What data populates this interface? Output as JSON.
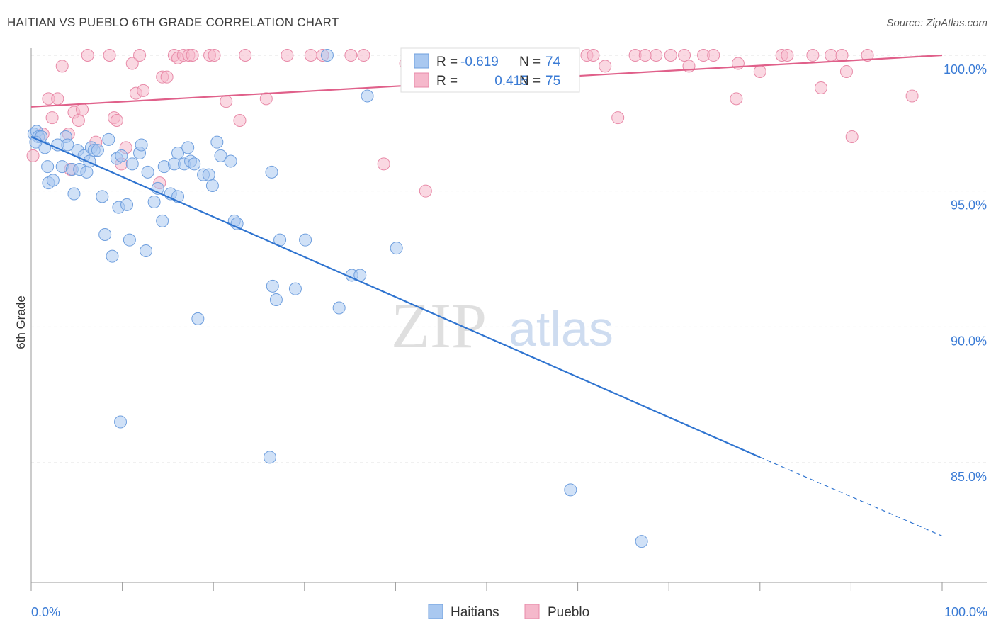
{
  "chart_data": {
    "type": "scatter",
    "title": "HAITIAN VS PUEBLO 6TH GRADE CORRELATION CHART",
    "source": "Source: ZipAtlas.com",
    "xlabel": "",
    "ylabel": "6th Grade",
    "xlim": [
      0,
      100
    ],
    "ylim": [
      80.5,
      100.8
    ],
    "x_tick_labels": [
      "0.0%",
      "100.0%"
    ],
    "y_ticks": [
      85,
      90,
      95,
      100
    ],
    "y_tick_labels": [
      "85.0%",
      "90.0%",
      "95.0%",
      "100.0%"
    ],
    "grid": true,
    "watermark": {
      "part1": "ZIP",
      "part2": "atlas"
    },
    "legend_top": [
      {
        "label_r": "R =",
        "r": "-0.619",
        "label_n": "N =",
        "n": "74",
        "color": "#3a7bd5"
      },
      {
        "label_r": "R =",
        "r": " 0.415",
        "label_n": "N =",
        "n": "75",
        "color": "#e0608a"
      }
    ],
    "legend_bottom": [
      {
        "name": "Haitians",
        "color": "#a9c8f0"
      },
      {
        "name": "Pueblo",
        "color": "#f5b8cb"
      }
    ],
    "series": [
      {
        "name": "Haitians",
        "fill": "#a9c8f0",
        "stroke": "#6f9fde",
        "line_color": "#2f74d0",
        "trend": {
          "x0": 0,
          "y0": 97.0,
          "x1": 80,
          "y1": 85.2,
          "x_dash_end": 100,
          "y_dash_end": 82.3
        },
        "points": [
          [
            0.3,
            97.1
          ],
          [
            0.6,
            97.2
          ],
          [
            0.8,
            97.0
          ],
          [
            1.1,
            97.0
          ],
          [
            1.5,
            96.6
          ],
          [
            1.8,
            95.9
          ],
          [
            1.9,
            95.3
          ],
          [
            2.4,
            95.4
          ],
          [
            2.9,
            96.7
          ],
          [
            3.4,
            95.9
          ],
          [
            3.8,
            97.0
          ],
          [
            4.0,
            96.7
          ],
          [
            4.5,
            95.8
          ],
          [
            4.7,
            94.9
          ],
          [
            5.1,
            96.5
          ],
          [
            5.3,
            95.8
          ],
          [
            5.8,
            96.3
          ],
          [
            6.1,
            95.7
          ],
          [
            6.4,
            96.1
          ],
          [
            6.6,
            96.6
          ],
          [
            6.9,
            96.5
          ],
          [
            7.3,
            96.5
          ],
          [
            7.8,
            94.8
          ],
          [
            8.1,
            93.4
          ],
          [
            8.5,
            96.9
          ],
          [
            8.9,
            92.6
          ],
          [
            9.4,
            96.2
          ],
          [
            9.6,
            94.4
          ],
          [
            9.9,
            96.3
          ],
          [
            10.5,
            94.5
          ],
          [
            10.8,
            93.2
          ],
          [
            11.1,
            96.0
          ],
          [
            11.9,
            96.4
          ],
          [
            12.1,
            96.7
          ],
          [
            12.6,
            92.8
          ],
          [
            12.8,
            95.7
          ],
          [
            13.5,
            94.6
          ],
          [
            13.9,
            95.1
          ],
          [
            14.4,
            93.9
          ],
          [
            14.6,
            95.9
          ],
          [
            15.3,
            94.9
          ],
          [
            15.7,
            96.0
          ],
          [
            16.1,
            94.8
          ],
          [
            16.1,
            96.4
          ],
          [
            16.8,
            96.0
          ],
          [
            17.2,
            96.6
          ],
          [
            17.5,
            96.1
          ],
          [
            17.9,
            96.0
          ],
          [
            18.3,
            90.3
          ],
          [
            18.9,
            95.6
          ],
          [
            19.5,
            95.6
          ],
          [
            19.9,
            95.2
          ],
          [
            20.4,
            96.8
          ],
          [
            20.8,
            96.3
          ],
          [
            21.9,
            96.1
          ],
          [
            22.3,
            93.9
          ],
          [
            22.6,
            93.8
          ],
          [
            26.4,
            95.7
          ],
          [
            26.5,
            91.5
          ],
          [
            26.9,
            91.0
          ],
          [
            27.3,
            93.2
          ],
          [
            29.0,
            91.4
          ],
          [
            30.1,
            93.2
          ],
          [
            32.5,
            100.0
          ],
          [
            33.8,
            90.7
          ],
          [
            35.2,
            91.9
          ],
          [
            36.1,
            91.9
          ],
          [
            36.9,
            98.5
          ],
          [
            40.1,
            92.9
          ],
          [
            9.8,
            86.5
          ],
          [
            26.2,
            85.2
          ],
          [
            59.2,
            84.0
          ],
          [
            67.0,
            82.1
          ],
          [
            0.5,
            96.8
          ]
        ]
      },
      {
        "name": "Pueblo",
        "fill": "#f5b8cb",
        "stroke": "#e88aa8",
        "line_color": "#e0608a",
        "trend": {
          "x0": 0,
          "y0": 98.1,
          "x1": 100,
          "y1": 100.0
        },
        "points": [
          [
            0.2,
            96.3
          ],
          [
            1.3,
            97.1
          ],
          [
            1.9,
            98.4
          ],
          [
            2.3,
            97.7
          ],
          [
            2.9,
            98.4
          ],
          [
            3.4,
            99.6
          ],
          [
            4.1,
            97.1
          ],
          [
            4.3,
            95.8
          ],
          [
            4.7,
            97.9
          ],
          [
            5.2,
            97.6
          ],
          [
            5.6,
            98.0
          ],
          [
            6.2,
            100.0
          ],
          [
            7.1,
            96.8
          ],
          [
            8.6,
            100.0
          ],
          [
            9.1,
            97.7
          ],
          [
            9.4,
            97.6
          ],
          [
            9.9,
            96.0
          ],
          [
            10.4,
            96.6
          ],
          [
            11.1,
            99.7
          ],
          [
            11.5,
            98.6
          ],
          [
            11.9,
            100.0
          ],
          [
            12.3,
            98.7
          ],
          [
            14.1,
            95.3
          ],
          [
            14.4,
            99.2
          ],
          [
            14.9,
            99.2
          ],
          [
            15.7,
            100.0
          ],
          [
            16.1,
            99.9
          ],
          [
            16.7,
            100.0
          ],
          [
            17.3,
            100.0
          ],
          [
            17.7,
            100.0
          ],
          [
            19.6,
            100.0
          ],
          [
            20.1,
            100.0
          ],
          [
            21.4,
            98.3
          ],
          [
            22.9,
            97.6
          ],
          [
            23.5,
            100.0
          ],
          [
            25.8,
            98.4
          ],
          [
            28.1,
            100.0
          ],
          [
            30.7,
            100.0
          ],
          [
            32.0,
            100.0
          ],
          [
            35.1,
            100.0
          ],
          [
            36.5,
            100.0
          ],
          [
            38.7,
            96.0
          ],
          [
            41.1,
            99.7
          ],
          [
            43.3,
            95.0
          ],
          [
            46.3,
            100.0
          ],
          [
            47.8,
            100.0
          ],
          [
            48.5,
            100.0
          ],
          [
            53.1,
            100.0
          ],
          [
            57.5,
            100.0
          ],
          [
            58.3,
            100.0
          ],
          [
            61.0,
            100.0
          ],
          [
            61.7,
            100.0
          ],
          [
            63.0,
            99.6
          ],
          [
            64.4,
            97.7
          ],
          [
            66.3,
            100.0
          ],
          [
            67.4,
            100.0
          ],
          [
            68.6,
            100.0
          ],
          [
            70.2,
            100.0
          ],
          [
            71.7,
            100.0
          ],
          [
            72.2,
            99.6
          ],
          [
            73.8,
            100.0
          ],
          [
            74.9,
            100.0
          ],
          [
            77.4,
            98.4
          ],
          [
            77.6,
            99.7
          ],
          [
            80.0,
            99.4
          ],
          [
            82.4,
            100.0
          ],
          [
            83.0,
            100.0
          ],
          [
            85.8,
            100.0
          ],
          [
            86.7,
            98.8
          ],
          [
            87.8,
            100.0
          ],
          [
            89.0,
            100.0
          ],
          [
            89.5,
            99.4
          ],
          [
            90.1,
            97.0
          ],
          [
            91.8,
            100.0
          ],
          [
            96.7,
            98.5
          ]
        ]
      }
    ]
  }
}
